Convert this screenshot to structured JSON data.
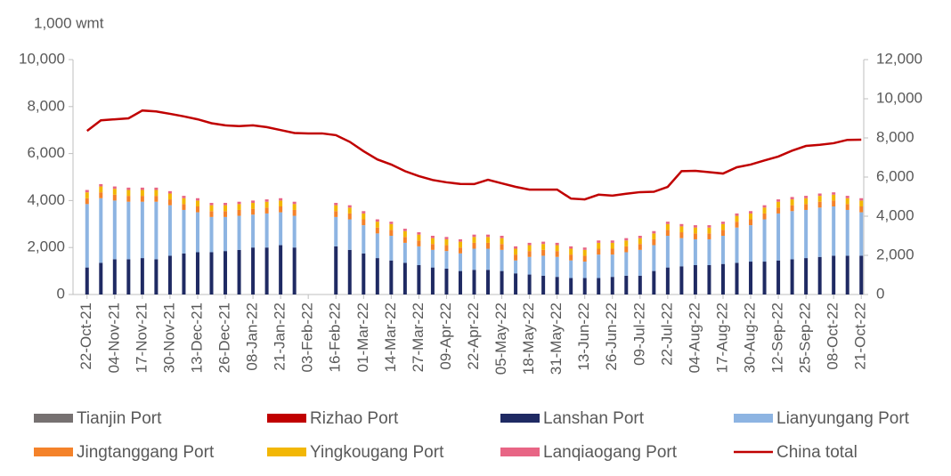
{
  "chart_data": {
    "type": "bar",
    "stacked": true,
    "y_unit_label": "1,000 wmt",
    "categories": [
      "22-Oct-21",
      null,
      "04-Nov-21",
      null,
      "17-Nov-21",
      null,
      "30-Nov-21",
      null,
      "13-Dec-21",
      null,
      "26-Dec-21",
      null,
      "08-Jan-22",
      null,
      "21-Jan-22",
      null,
      "03-Feb-22",
      null,
      "16-Feb-22",
      null,
      "01-Mar-22",
      null,
      "14-Mar-22",
      null,
      "27-Mar-22",
      null,
      "09-Apr-22",
      null,
      "22-Apr-22",
      null,
      "05-May-22",
      null,
      "18-May-22",
      null,
      "31-May-22",
      null,
      "13-Jun-22",
      null,
      "26-Jun-22",
      null,
      "09-Jul-22",
      null,
      "22-Jul-22",
      null,
      "04-Aug-22",
      null,
      "17-Aug-22",
      null,
      "30-Aug-22",
      null,
      "12-Sep-22",
      null,
      "25-Sep-22",
      null,
      "08-Oct-22",
      null,
      "21-Oct-22"
    ],
    "series": [
      {
        "name": "Tianjin Port",
        "color": "#767171",
        "values": [
          0,
          0,
          0,
          0,
          0,
          0,
          0,
          0,
          0,
          0,
          0,
          0,
          0,
          0,
          0,
          0,
          null,
          null,
          0,
          0,
          0,
          0,
          0,
          0,
          0,
          0,
          0,
          0,
          0,
          0,
          0,
          0,
          0,
          0,
          0,
          0,
          0,
          0,
          0,
          0,
          0,
          0,
          0,
          0,
          0,
          0,
          0,
          0,
          0,
          0,
          0,
          0,
          0,
          0,
          0,
          0,
          0
        ]
      },
      {
        "name": "Rizhao Port",
        "color": "#c00000",
        "values": [
          0,
          0,
          0,
          0,
          0,
          0,
          0,
          0,
          0,
          0,
          0,
          0,
          0,
          0,
          0,
          0,
          null,
          null,
          0,
          0,
          0,
          0,
          0,
          0,
          0,
          0,
          0,
          0,
          0,
          0,
          0,
          0,
          0,
          0,
          0,
          0,
          0,
          0,
          0,
          0,
          0,
          0,
          0,
          0,
          0,
          0,
          0,
          0,
          0,
          0,
          0,
          0,
          0,
          0,
          0,
          0,
          0
        ]
      },
      {
        "name": "Lanshan Port",
        "color": "#1f2a63",
        "values": [
          1150,
          1350,
          1500,
          1500,
          1550,
          1500,
          1650,
          1750,
          1800,
          1800,
          1850,
          1900,
          2000,
          2000,
          2100,
          2000,
          null,
          null,
          2050,
          1900,
          1750,
          1550,
          1450,
          1350,
          1250,
          1150,
          1100,
          1000,
          1050,
          1050,
          1000,
          900,
          850,
          800,
          750,
          700,
          700,
          700,
          750,
          800,
          800,
          1000,
          1150,
          1200,
          1250,
          1250,
          1300,
          1350,
          1400,
          1400,
          1450,
          1500,
          1550,
          1600,
          1650,
          1650,
          1650
        ]
      },
      {
        "name": "Lianyungang Port",
        "color": "#8db4e2",
        "values": [
          2700,
          2750,
          2500,
          2450,
          2400,
          2450,
          2150,
          1850,
          1700,
          1500,
          1450,
          1450,
          1400,
          1450,
          1400,
          1350,
          null,
          null,
          1250,
          1300,
          1200,
          1050,
          1050,
          850,
          800,
          750,
          750,
          750,
          900,
          900,
          900,
          550,
          750,
          850,
          850,
          750,
          700,
          1000,
          950,
          1000,
          1100,
          1100,
          1350,
          1200,
          1100,
          1100,
          1200,
          1500,
          1550,
          1800,
          2000,
          2050,
          2050,
          2100,
          2100,
          1950,
          1850
        ]
      },
      {
        "name": "Jingtanggang Port",
        "color": "#f4822a",
        "values": [
          250,
          250,
          250,
          250,
          250,
          250,
          250,
          250,
          250,
          250,
          250,
          250,
          250,
          250,
          250,
          250,
          null,
          null,
          250,
          250,
          250,
          250,
          250,
          250,
          250,
          250,
          250,
          250,
          250,
          250,
          250,
          250,
          250,
          250,
          250,
          250,
          250,
          250,
          250,
          250,
          250,
          250,
          250,
          250,
          250,
          250,
          250,
          250,
          250,
          250,
          250,
          250,
          250,
          250,
          250,
          250,
          250
        ]
      },
      {
        "name": "Yingkougang Port",
        "color": "#f2b705",
        "values": [
          250,
          250,
          250,
          250,
          250,
          250,
          250,
          250,
          250,
          250,
          250,
          250,
          250,
          250,
          250,
          250,
          null,
          null,
          250,
          250,
          250,
          250,
          250,
          250,
          250,
          250,
          250,
          250,
          250,
          250,
          250,
          250,
          250,
          250,
          250,
          250,
          250,
          250,
          250,
          250,
          250,
          250,
          250,
          250,
          250,
          250,
          250,
          250,
          250,
          250,
          250,
          250,
          250,
          250,
          250,
          250,
          250
        ]
      },
      {
        "name": "Lanqiaogang Port",
        "color": "#e86585",
        "values": [
          100,
          100,
          100,
          100,
          100,
          100,
          100,
          100,
          100,
          100,
          100,
          100,
          100,
          100,
          100,
          100,
          null,
          null,
          100,
          100,
          100,
          100,
          100,
          100,
          100,
          100,
          100,
          100,
          100,
          100,
          100,
          100,
          100,
          100,
          100,
          100,
          100,
          100,
          100,
          100,
          100,
          100,
          100,
          100,
          100,
          100,
          100,
          100,
          100,
          100,
          100,
          100,
          100,
          100,
          100,
          100,
          100
        ]
      },
      {
        "name": "China total",
        "color": "#c00000",
        "type": "line",
        "axis": "y2",
        "values": [
          8360,
          8900,
          8950,
          9000,
          9400,
          9350,
          9230,
          9100,
          8950,
          8750,
          8640,
          8600,
          8640,
          8550,
          8400,
          8250,
          8230,
          8230,
          8140,
          7800,
          7320,
          6900,
          6640,
          6300,
          6050,
          5850,
          5730,
          5650,
          5640,
          5860,
          5680,
          5500,
          5360,
          5360,
          5360,
          4900,
          4860,
          5100,
          5050,
          5150,
          5230,
          5250,
          5500,
          6300,
          6320,
          6250,
          6180,
          6500,
          6640,
          6850,
          7050,
          7350,
          7590,
          7650,
          7730,
          7900,
          7910
        ]
      }
    ],
    "ylim": [
      0,
      10000
    ],
    "yticks": [
      0,
      {
        "value": 2000,
        "label": "2,000"
      },
      {
        "value": 4000,
        "label": "4,000"
      },
      {
        "value": 6000,
        "label": "6,000"
      },
      {
        "value": 8000,
        "label": "8,000"
      },
      {
        "value": 10000,
        "label": "10,000"
      }
    ],
    "y2lim": [
      0,
      12000
    ],
    "y2ticks": [
      0,
      {
        "value": 2000,
        "label": "2,000"
      },
      {
        "value": 4000,
        "label": "4,000"
      },
      {
        "value": 6000,
        "label": "6,000"
      },
      {
        "value": 8000,
        "label": "8,000"
      },
      {
        "value": 10000,
        "label": "10,000"
      },
      {
        "value": 12000,
        "label": "12,000"
      }
    ],
    "grid": false,
    "legend": "bottom"
  }
}
